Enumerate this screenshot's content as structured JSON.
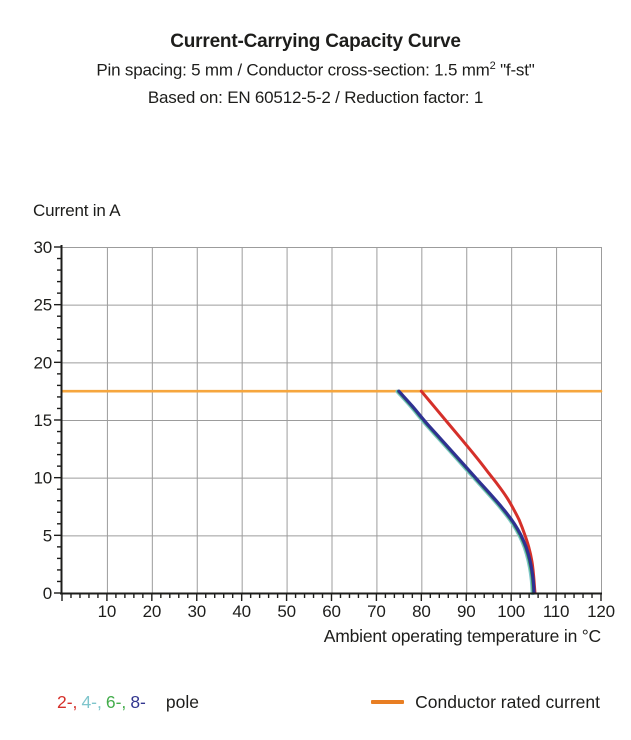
{
  "header": {
    "title": "Current-Carrying Capacity Curve",
    "subtitle1_pre": "Pin spacing: 5 mm / Conductor cross-section: 1.5 mm",
    "subtitle1_sup": "2",
    "subtitle1_post": " \"f-st\"",
    "subtitle2": "Based on: EN 60512-5-2 / Reduction factor: 1"
  },
  "chart_data": {
    "type": "line",
    "title": "Current-Carrying Capacity Curve",
    "grid": true,
    "x_axis": {
      "label": "Ambient operating temperature in °C",
      "min": 0,
      "max": 120,
      "major_tick": 10,
      "minor_tick": 2,
      "tick_labels": [
        "10",
        "20",
        "30",
        "40",
        "50",
        "60",
        "70",
        "80",
        "90",
        "100",
        "110",
        "120"
      ]
    },
    "y_axis": {
      "label": "Current in A",
      "min": 0,
      "max": 30,
      "major_tick": 5,
      "minor_tick": 1,
      "tick_labels": [
        "0",
        "5",
        "10",
        "15",
        "20",
        "25",
        "30"
      ]
    },
    "rated_current_A": 17.5,
    "series": [
      {
        "name": "Conductor rated current",
        "color": "#F6A63E",
        "width": 2.6,
        "points": [
          [
            0,
            17.5
          ],
          [
            120,
            17.5
          ]
        ]
      },
      {
        "name": "4-pole",
        "color": "#7FC5CC",
        "width": 3.6,
        "points": [
          [
            75,
            17.5
          ],
          [
            78,
            16.2
          ],
          [
            81,
            14.8
          ],
          [
            84,
            13.5
          ],
          [
            87,
            12.2
          ],
          [
            90,
            10.9
          ],
          [
            93,
            9.6
          ],
          [
            96,
            8.3
          ],
          [
            98,
            7.4
          ],
          [
            100,
            6.4
          ],
          [
            101.5,
            5.5
          ],
          [
            102.8,
            4.5
          ],
          [
            103.8,
            3.4
          ],
          [
            104.5,
            2.2
          ],
          [
            104.9,
            1.1
          ],
          [
            105.1,
            0
          ]
        ]
      },
      {
        "name": "6-pole",
        "color": "#44AD4C",
        "width": 3.0,
        "points": [
          [
            75,
            17.5
          ],
          [
            78,
            16.2
          ],
          [
            81,
            14.8
          ],
          [
            84,
            13.5
          ],
          [
            87,
            12.2
          ],
          [
            90,
            10.9
          ],
          [
            93,
            9.6
          ],
          [
            96,
            8.3
          ],
          [
            98,
            7.4
          ],
          [
            100,
            6.4
          ],
          [
            101.5,
            5.5
          ],
          [
            102.8,
            4.5
          ],
          [
            103.8,
            3.4
          ],
          [
            104.5,
            2.2
          ],
          [
            104.9,
            1.1
          ],
          [
            105.1,
            0
          ]
        ]
      },
      {
        "name": "2-pole",
        "color": "#D5302A",
        "width": 3.0,
        "points": [
          [
            80,
            17.5
          ],
          [
            83,
            16.1
          ],
          [
            86,
            14.7
          ],
          [
            89,
            13.3
          ],
          [
            92,
            11.9
          ],
          [
            95,
            10.4
          ],
          [
            97,
            9.4
          ],
          [
            99,
            8.3
          ],
          [
            100.5,
            7.3
          ],
          [
            101.8,
            6.3
          ],
          [
            103,
            5.1
          ],
          [
            103.9,
            4.0
          ],
          [
            104.6,
            2.8
          ],
          [
            105.0,
            1.5
          ],
          [
            105.3,
            0
          ]
        ]
      },
      {
        "name": "8-pole",
        "color": "#2E3192",
        "width": 3.2,
        "points": [
          [
            75,
            17.5
          ],
          [
            78,
            16.2
          ],
          [
            81,
            14.8
          ],
          [
            84,
            13.5
          ],
          [
            87,
            12.2
          ],
          [
            90,
            10.9
          ],
          [
            93,
            9.6
          ],
          [
            96,
            8.3
          ],
          [
            98,
            7.4
          ],
          [
            100,
            6.4
          ],
          [
            101.5,
            5.5
          ],
          [
            102.8,
            4.5
          ],
          [
            103.8,
            3.4
          ],
          [
            104.5,
            2.2
          ],
          [
            104.9,
            1.1
          ],
          [
            105.1,
            0
          ]
        ]
      }
    ]
  },
  "legend": {
    "poles": [
      {
        "label": "2-,",
        "color": "#D5302A"
      },
      {
        "label": "4-,",
        "color": "#7FC5CC"
      },
      {
        "label": "6-,",
        "color": "#44AD4C"
      },
      {
        "label": "8-",
        "color": "#32368F"
      }
    ],
    "pole_word": "pole",
    "rated": {
      "label": "Conductor rated current",
      "color": "#E87E23"
    }
  },
  "colors": {
    "text": "#1d1d1b",
    "grid": "#9c9c9c",
    "axis": "#1d1d1b",
    "background": "#ffffff"
  }
}
